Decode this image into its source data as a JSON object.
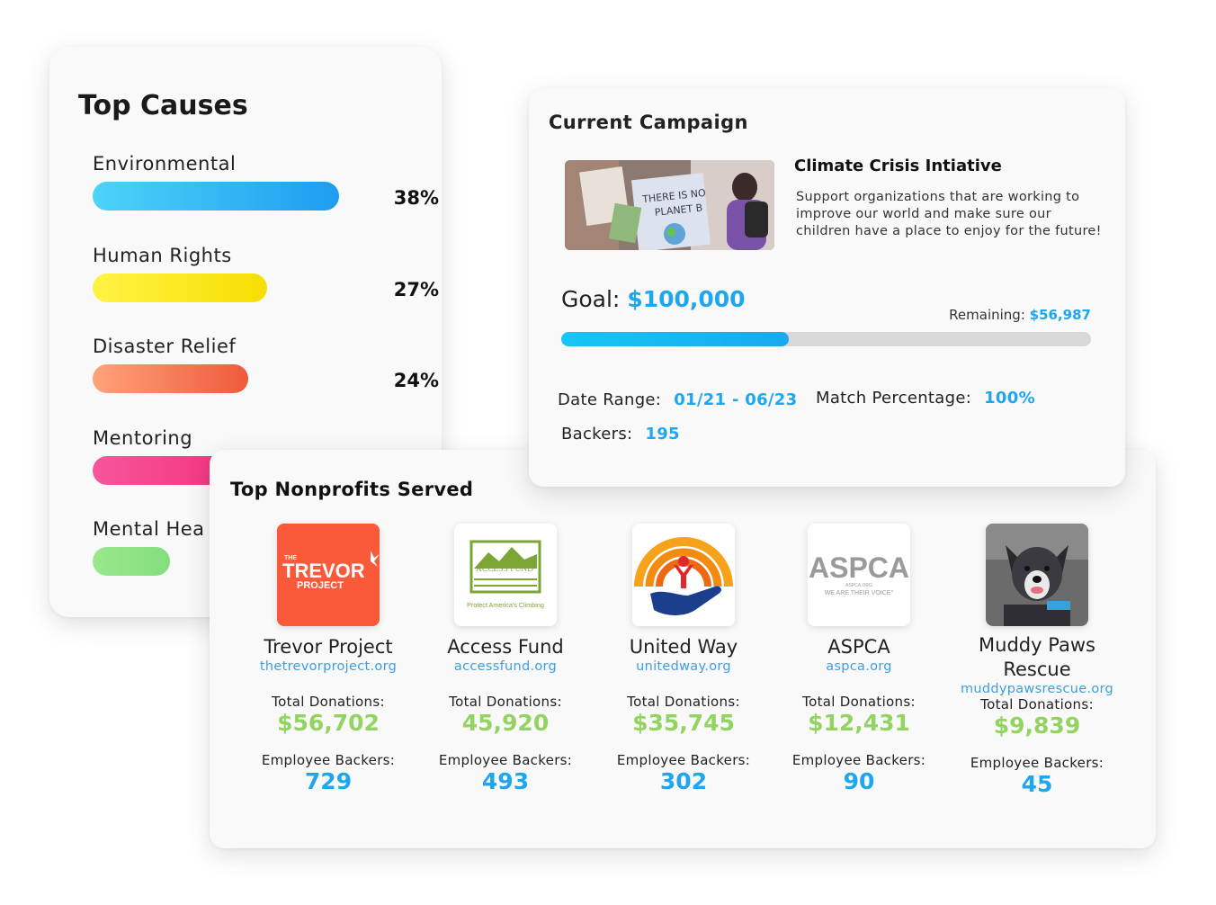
{
  "causes": {
    "title": "Top Causes",
    "items": [
      {
        "label": "Environmental",
        "percent_label": "38%",
        "fill": 0.38,
        "color_from": "#4cd4f8",
        "color_to": "#1e9cf0"
      },
      {
        "label": "Human Rights",
        "percent_label": "27%",
        "fill": 0.27,
        "color_from": "#fff345",
        "color_to": "#f6de00"
      },
      {
        "label": "Disaster Relief",
        "percent_label": "24%",
        "fill": 0.24,
        "color_from": "#ffa27a",
        "color_to": "#ef5a3c"
      },
      {
        "label": "Mentoring",
        "percent_label": "",
        "fill": 0.36,
        "color_from": "#f8559a",
        "color_to": "#ef1f6c"
      },
      {
        "label": "Mental Hea",
        "percent_label": "",
        "fill": 0.12,
        "color_from": "#9ae88c",
        "color_to": "#83de7c"
      }
    ]
  },
  "campaign": {
    "title": "Current Campaign",
    "name": "Climate Crisis Intiative",
    "description": "Support organizations that are working to improve our world and make sure our children have a place to enjoy for the future!",
    "sign_text": "THERE IS NO PLANET B",
    "goal_label": "Goal:",
    "goal_value": "$100,000",
    "remaining_label": "Remaining:",
    "remaining_value": "$56,987",
    "progress": 0.43,
    "date_range_label": "Date Range:",
    "date_range_value": "01/21 - 06/23",
    "match_label": "Match Percentage:",
    "match_value": "100%",
    "backers_label": "Backers:",
    "backers_value": "195"
  },
  "nonprofits": {
    "title": "Top Nonprofits Served",
    "total_label": "Total Donations:",
    "backers_label": "Employee Backers:",
    "items": [
      {
        "name": "Trevor Project",
        "url": "thetrevorproject.org",
        "donations": "$56,702",
        "backers": "729",
        "logo": {
          "small": "THE",
          "big": "TREVOR",
          "sub": "PROJECT",
          "color": "#fa5a3a"
        }
      },
      {
        "name": "Access Fund",
        "url": "accessfund.org",
        "donations": "45,920",
        "backers": "493",
        "logo": {
          "big": "ACCESS FUND",
          "sub": "Protect America's Climbing",
          "color": "#7ba636"
        }
      },
      {
        "name": "United Way",
        "url": "unitedway.org",
        "donations": "$35,745",
        "backers": "302",
        "logo": {
          "color_arc": "#f28b10",
          "color_hand": "#1b3f8c"
        }
      },
      {
        "name": "ASPCA",
        "url": "aspca.org",
        "donations": "$12,431",
        "backers": "90",
        "logo": {
          "big": "ASPCA",
          "small": "ASPCA.ORG",
          "sub": "WE ARE THEIR VOICE°",
          "color": "#9a9a9a"
        }
      },
      {
        "name": "Muddy Paws Rescue",
        "url": "muddypawsrescue.org",
        "donations": "$9,839",
        "backers": "45",
        "logo": {
          "color": "#6b6b6b"
        }
      }
    ]
  }
}
